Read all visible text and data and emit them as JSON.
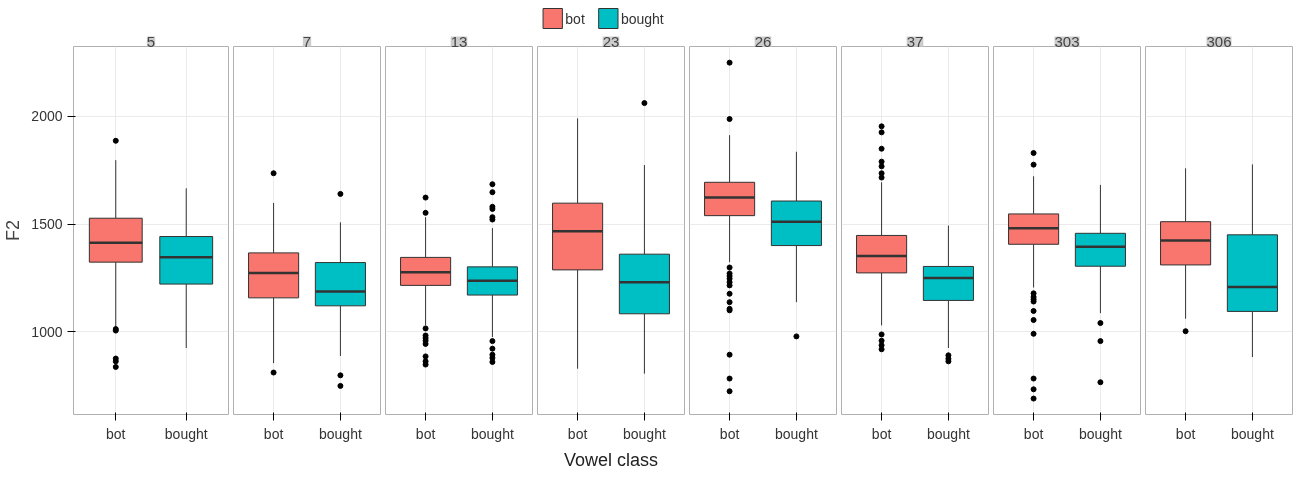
{
  "chart_data": [
    {
      "type": "box",
      "title": "5",
      "ylabel": "F2",
      "grid": true,
      "categories": [
        "bot",
        "bought"
      ],
      "ylim": [
        615,
        2325
      ],
      "yticks": [
        1000,
        1500,
        2000
      ],
      "series": [
        {
          "color": "#f8766d",
          "boxes": [
            {
              "low": 1020,
              "q1": 1323,
              "median": 1413,
              "q3": 1527,
              "high": 1797,
              "outliers": [
                1887,
                1012,
                1005,
                875,
                862,
                836
              ]
            },
            null
          ]
        },
        {
          "color": "#00bfc4",
          "boxes": [
            null,
            {
              "low": 924,
              "q1": 1221,
              "median": 1346,
              "q3": 1442,
              "high": 1666
            }
          ]
        }
      ]
    },
    {
      "type": "box",
      "title": "7",
      "grid": true,
      "tick_labels": "x",
      "categories": [
        "bot",
        "bought"
      ],
      "ylim": [
        615,
        2325
      ],
      "yticks": [
        1000,
        1500,
        2000
      ],
      "series": [
        {
          "color": "#f8766d",
          "boxes": [
            {
              "low": 854,
              "q1": 1157,
              "median": 1273,
              "q3": 1366,
              "high": 1598,
              "outliers": [
                1736,
                810
              ]
            },
            null
          ]
        },
        {
          "color": "#00bfc4",
          "boxes": [
            null,
            {
              "low": 887,
              "q1": 1120,
              "median": 1187,
              "q3": 1321,
              "high": 1508,
              "outliers": [
                1640,
                797,
                748
              ]
            }
          ]
        }
      ]
    },
    {
      "type": "box",
      "title": "13",
      "grid": true,
      "tick_labels": "x",
      "categories": [
        "bot",
        "bought"
      ],
      "ylim": [
        615,
        2325
      ],
      "yticks": [
        1000,
        1500,
        2000
      ],
      "series": [
        {
          "color": "#f8766d",
          "boxes": [
            {
              "low": 1030,
              "q1": 1215,
              "median": 1276,
              "q3": 1345,
              "high": 1532,
              "outliers": [
                1623,
                1552,
                1015,
                982,
                970,
                958,
                943,
                885,
                862,
                847
              ]
            },
            null
          ]
        },
        {
          "color": "#00bfc4",
          "boxes": [
            null,
            {
              "low": 975,
              "q1": 1170,
              "median": 1236,
              "q3": 1301,
              "high": 1481,
              "outliers": [
                1685,
                1648,
                1580,
                1570,
                1532,
                1521,
                956,
                921,
                893,
                878,
                859
              ]
            }
          ]
        }
      ]
    },
    {
      "type": "box",
      "title": "23",
      "xlabel": "Vowel class",
      "legend": "top",
      "grid": true,
      "tick_labels": "x",
      "categories": [
        "bot",
        "bought"
      ],
      "ylim": [
        615,
        2325
      ],
      "yticks": [
        1000,
        1500,
        2000
      ],
      "series": [
        {
          "name": "bot",
          "color": "#f8766d",
          "boxes": [
            {
              "low": 828,
              "q1": 1287,
              "median": 1467,
              "q3": 1597,
              "high": 1991
            },
            null
          ]
        },
        {
          "name": "bought",
          "color": "#00bfc4",
          "boxes": [
            null,
            {
              "low": 805,
              "q1": 1083,
              "median": 1229,
              "q3": 1360,
              "high": 1774,
              "outliers": [
                2062
              ]
            }
          ]
        }
      ]
    },
    {
      "type": "box",
      "title": "26",
      "grid": true,
      "tick_labels": "x",
      "categories": [
        "bot",
        "bought"
      ],
      "ylim": [
        615,
        2325
      ],
      "yticks": [
        1000,
        1500,
        2000
      ],
      "series": [
        {
          "color": "#f8766d",
          "boxes": [
            {
              "low": 1323,
              "q1": 1539,
              "median": 1623,
              "q3": 1694,
              "high": 1913,
              "outliers": [
                2250,
                1988,
                1298,
                1270,
                1258,
                1246,
                1230,
                1215,
                1176,
                1137,
                1106,
                1099,
                893,
                782,
                723
              ]
            },
            null
          ]
        },
        {
          "color": "#00bfc4",
          "boxes": [
            null,
            {
              "low": 1137,
              "q1": 1400,
              "median": 1511,
              "q3": 1607,
              "high": 1836,
              "outliers": [
                978
              ]
            }
          ]
        }
      ]
    },
    {
      "type": "box",
      "title": "37",
      "grid": true,
      "tick_labels": "x",
      "categories": [
        "bot",
        "bought"
      ],
      "ylim": [
        615,
        2325
      ],
      "yticks": [
        1000,
        1500,
        2000
      ],
      "series": [
        {
          "color": "#f8766d",
          "boxes": [
            {
              "low": 1029,
              "q1": 1273,
              "median": 1351,
              "q3": 1447,
              "high": 1694,
              "outliers": [
                1954,
                1926,
                1850,
                1790,
                1768,
                1736,
                1716,
                987,
                958,
                937,
                918
              ]
            },
            null
          ]
        },
        {
          "color": "#00bfc4",
          "boxes": [
            null,
            {
              "low": 924,
              "q1": 1145,
              "median": 1249,
              "q3": 1303,
              "high": 1493,
              "outliers": [
                890,
                874,
                862
              ]
            }
          ]
        }
      ]
    },
    {
      "type": "box",
      "title": "303",
      "grid": true,
      "tick_labels": "x",
      "categories": [
        "bot",
        "bought"
      ],
      "ylim": [
        615,
        2325
      ],
      "yticks": [
        1000,
        1500,
        2000
      ],
      "series": [
        {
          "color": "#f8766d",
          "boxes": [
            {
              "low": 1205,
              "q1": 1406,
              "median": 1481,
              "q3": 1547,
              "high": 1722,
              "outliers": [
                1830,
                1776,
                1178,
                1161,
                1150,
                1140,
                1096,
                1054,
                990,
                782,
                732,
                689
              ]
            },
            null
          ]
        },
        {
          "color": "#00bfc4",
          "boxes": [
            null,
            {
              "low": 1086,
              "q1": 1304,
              "median": 1394,
              "q3": 1457,
              "high": 1682,
              "outliers": [
                1040,
                956,
                765
              ]
            }
          ]
        }
      ]
    },
    {
      "type": "box",
      "title": "306",
      "grid": true,
      "tick_labels": "x",
      "categories": [
        "bot",
        "bought"
      ],
      "ylim": [
        615,
        2325
      ],
      "yticks": [
        1000,
        1500,
        2000
      ],
      "series": [
        {
          "color": "#f8766d",
          "boxes": [
            {
              "low": 1060,
              "q1": 1310,
              "median": 1423,
              "q3": 1511,
              "high": 1759,
              "outliers": [
                1002
              ]
            },
            null
          ]
        },
        {
          "color": "#00bfc4",
          "boxes": [
            null,
            {
              "low": 882,
              "q1": 1094,
              "median": 1207,
              "q3": 1450,
              "high": 1777
            }
          ]
        }
      ]
    }
  ]
}
